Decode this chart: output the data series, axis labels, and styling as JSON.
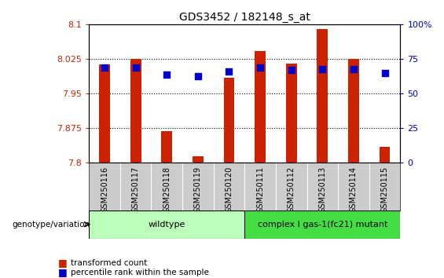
{
  "title": "GDS3452 / 182148_s_at",
  "samples": [
    "GSM250116",
    "GSM250117",
    "GSM250118",
    "GSM250119",
    "GSM250120",
    "GSM250111",
    "GSM250112",
    "GSM250113",
    "GSM250114",
    "GSM250115"
  ],
  "transformed_count": [
    8.013,
    8.025,
    7.868,
    7.815,
    7.985,
    8.042,
    8.015,
    8.09,
    8.025,
    7.835
  ],
  "percentile_rank": [
    69,
    69,
    64,
    63,
    66,
    69,
    67,
    68,
    68,
    65
  ],
  "ylim_left": [
    7.8,
    8.1
  ],
  "ylim_right": [
    0,
    100
  ],
  "yticks_left": [
    7.8,
    7.875,
    7.95,
    8.025,
    8.1
  ],
  "yticks_right": [
    0,
    25,
    50,
    75,
    100
  ],
  "ytick_labels_left": [
    "7.8",
    "7.875",
    "7.95",
    "8.025",
    "8.1"
  ],
  "ytick_labels_right": [
    "0",
    "25",
    "50",
    "75",
    "100%"
  ],
  "bar_color": "#cc2200",
  "dot_color": "#0000cc",
  "background_plot": "#ffffff",
  "tick_label_area_bg": "#cccccc",
  "wildtype_bg": "#bbffbb",
  "mutant_bg": "#44dd44",
  "wildtype_label": "wildtype",
  "mutant_label": "complex I gas-1(fc21) mutant",
  "genotype_label": "genotype/variation",
  "legend_transformed": "transformed count",
  "legend_percentile": "percentile rank within the sample",
  "wildtype_indices": [
    0,
    1,
    2,
    3,
    4
  ],
  "mutant_indices": [
    5,
    6,
    7,
    8,
    9
  ],
  "bar_width": 0.35,
  "dot_size": 40
}
